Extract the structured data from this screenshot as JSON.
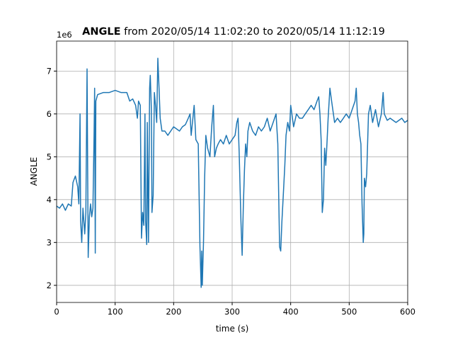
{
  "chart_data": {
    "type": "line",
    "title_bold": "ANGLE",
    "title": " from 2020/05/14 11:02:20 to 2020/05/14 11:12:19",
    "y_offset_label": "1e6",
    "xlabel": "time (s)",
    "ylabel": "ANGLE",
    "xlim": [
      0,
      600
    ],
    "xticks": [
      0,
      100,
      200,
      300,
      400,
      500,
      600
    ],
    "ylim": [
      1.6,
      7.7
    ],
    "yticks": [
      2,
      3,
      4,
      5,
      6,
      7
    ],
    "grid": true,
    "x": [
      0,
      5,
      10,
      15,
      20,
      25,
      28,
      32,
      36,
      38,
      40,
      41,
      43,
      45,
      48,
      50,
      52,
      54,
      56,
      58,
      60,
      62,
      64,
      65,
      66,
      67,
      70,
      80,
      90,
      100,
      110,
      120,
      125,
      130,
      135,
      138,
      140,
      143,
      145,
      147,
      149,
      151,
      152,
      154,
      155,
      157,
      159,
      160,
      162,
      163,
      165,
      167,
      169,
      171,
      173,
      175,
      177,
      180,
      185,
      190,
      195,
      200,
      210,
      215,
      220,
      225,
      228,
      230,
      235,
      238,
      242,
      245,
      247,
      248,
      249,
      251,
      253,
      255,
      258,
      262,
      265,
      268,
      270,
      273,
      276,
      280,
      285,
      290,
      295,
      300,
      305,
      308,
      310,
      312,
      315,
      317,
      319,
      321,
      323,
      325,
      327,
      330,
      335,
      340,
      345,
      350,
      355,
      360,
      365,
      370,
      375,
      378,
      381,
      383,
      385,
      387,
      390,
      392,
      395,
      398,
      400,
      405,
      410,
      415,
      420,
      425,
      430,
      435,
      440,
      445,
      448,
      450,
      452,
      454,
      456,
      458,
      460,
      462,
      464,
      467,
      470,
      475,
      480,
      485,
      490,
      495,
      500,
      505,
      510,
      512,
      514,
      516,
      518,
      520,
      522,
      524,
      525,
      526,
      528,
      530,
      533,
      536,
      540,
      545,
      550,
      555,
      558,
      560,
      565,
      570,
      575,
      580,
      590,
      595,
      600
    ],
    "series": [
      {
        "name": "ANGLE",
        "color": "#1f77b4",
        "values": [
          3.85,
          3.8,
          3.9,
          3.75,
          3.9,
          3.85,
          4.4,
          4.55,
          4.3,
          3.9,
          6.0,
          3.5,
          3.0,
          3.8,
          3.2,
          3.7,
          7.05,
          2.65,
          3.6,
          3.9,
          3.6,
          3.8,
          5.5,
          6.6,
          2.75,
          6.3,
          6.45,
          6.5,
          6.5,
          6.55,
          6.5,
          6.5,
          6.3,
          6.35,
          6.2,
          5.9,
          6.3,
          6.2,
          3.1,
          3.7,
          3.4,
          6.0,
          3.5,
          2.95,
          5.8,
          3.0,
          6.6,
          6.9,
          6.1,
          3.7,
          4.1,
          6.5,
          6.2,
          5.8,
          7.3,
          6.6,
          5.9,
          5.6,
          5.6,
          5.5,
          5.6,
          5.7,
          5.6,
          5.7,
          5.75,
          5.9,
          6.0,
          5.5,
          6.2,
          5.4,
          5.3,
          2.9,
          1.95,
          2.8,
          2.0,
          3.0,
          4.5,
          5.5,
          5.2,
          5.0,
          5.7,
          6.2,
          5.0,
          5.2,
          5.3,
          5.4,
          5.3,
          5.5,
          5.3,
          5.4,
          5.5,
          5.8,
          5.9,
          5.1,
          3.5,
          2.7,
          3.8,
          4.7,
          5.3,
          5.0,
          5.6,
          5.8,
          5.6,
          5.5,
          5.7,
          5.6,
          5.7,
          5.9,
          5.6,
          5.8,
          6.0,
          5.3,
          2.9,
          2.8,
          3.5,
          4.0,
          4.8,
          5.5,
          5.8,
          5.6,
          6.2,
          5.7,
          6.0,
          5.9,
          5.9,
          6.0,
          6.1,
          6.2,
          6.1,
          6.3,
          6.4,
          6.0,
          5.4,
          3.7,
          4.0,
          5.2,
          4.8,
          5.3,
          5.9,
          6.6,
          6.3,
          5.8,
          5.9,
          5.8,
          5.9,
          6.0,
          5.9,
          6.1,
          6.3,
          6.6,
          6.0,
          5.8,
          5.5,
          5.3,
          3.9,
          3.0,
          3.2,
          4.5,
          4.3,
          4.6,
          6.0,
          6.2,
          5.8,
          6.1,
          5.7,
          6.0,
          6.5,
          6.0,
          5.85,
          5.9,
          5.85,
          5.8,
          5.9,
          5.8,
          5.85
        ]
      }
    ]
  }
}
